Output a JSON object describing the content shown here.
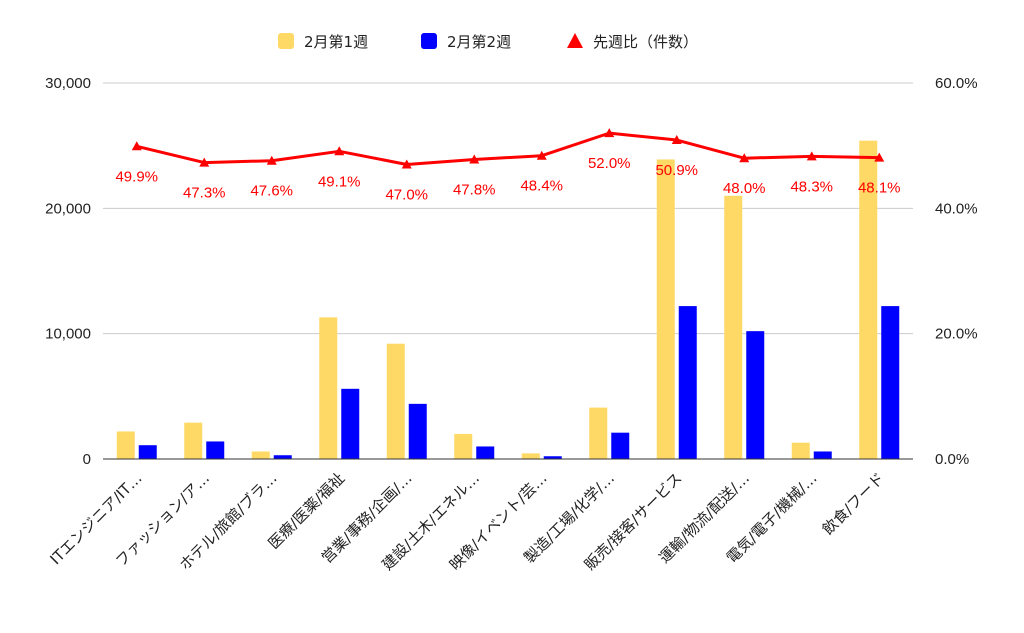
{
  "chart_data": {
    "type": "bar",
    "categories": [
      "ITエンジニア/IT…",
      "ファッション/ア…",
      "ホテル/旅館/ブラ…",
      "医療/医薬/福祉",
      "営業/事務/企画/…",
      "建設/土木/エネル…",
      "映像/イベント/芸…",
      "製造/工場/化学/…",
      "販売/接客/サービス",
      "運輸/物流/配送/…",
      "電気/電子/機械/…",
      "飲食/フード"
    ],
    "series": [
      {
        "name": "2月第1週",
        "kind": "bar",
        "axis": "left",
        "color": "#ffd966",
        "values": [
          2200,
          2900,
          600,
          11300,
          9200,
          2000,
          450,
          4100,
          23900,
          21000,
          1300,
          25400
        ]
      },
      {
        "name": "2月第2週",
        "kind": "bar",
        "axis": "left",
        "color": "#0000ff",
        "values": [
          1100,
          1400,
          300,
          5600,
          4400,
          1000,
          220,
          2100,
          12200,
          10200,
          600,
          12200
        ]
      },
      {
        "name": "先週比（件数）",
        "kind": "line",
        "axis": "right",
        "color": "#ff0000",
        "values": [
          49.9,
          47.3,
          47.6,
          49.1,
          47.0,
          47.8,
          48.4,
          52.0,
          50.9,
          48.0,
          48.3,
          48.1
        ],
        "labels": [
          "49.9%",
          "47.3%",
          "47.6%",
          "49.1%",
          "47.0%",
          "47.8%",
          "48.4%",
          "52.0%",
          "50.9%",
          "48.0%",
          "48.3%",
          "48.1%"
        ]
      }
    ],
    "y_left": {
      "range": [
        0,
        30000
      ],
      "ticks": [
        0,
        10000,
        20000,
        30000
      ],
      "tick_labels": [
        "0",
        "10,000",
        "20,000",
        "30,000"
      ]
    },
    "y_right": {
      "range": [
        0,
        60
      ],
      "unit": "%",
      "ticks": [
        0,
        20,
        40,
        60
      ],
      "tick_labels": [
        "0.0%",
        "20.0%",
        "40.0%",
        "60.0%"
      ]
    },
    "grid": true,
    "legend_position": "top-center",
    "title": "",
    "xlabel": "",
    "ylabel": ""
  }
}
